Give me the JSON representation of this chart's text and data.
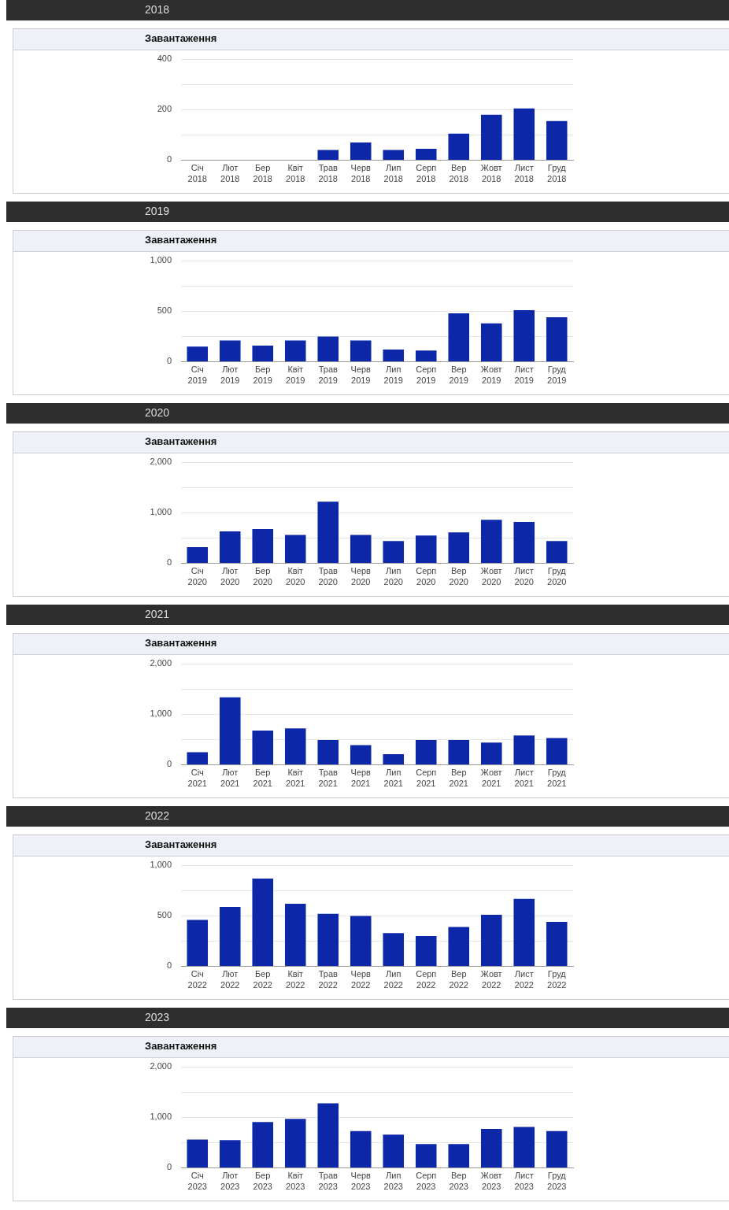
{
  "chart_data": [
    {
      "type": "bar",
      "title": "Завантаження",
      "subtitle": "2018",
      "categories": [
        "Січ 2018",
        "Лют 2018",
        "Бер 2018",
        "Квіт 2018",
        "Трав 2018",
        "Черв 2018",
        "Лип 2018",
        "Серп 2018",
        "Вер 2018",
        "Жовт 2018",
        "Лист 2018",
        "Груд 2018"
      ],
      "color": "#0c28a8",
      "values": [
        null,
        null,
        null,
        null,
        40,
        70,
        40,
        45,
        105,
        180,
        205,
        155
      ],
      "ylim": [
        0,
        400
      ],
      "yticks": [
        0,
        {
          "value": 100,
          "label": null
        },
        200,
        {
          "value": 300,
          "label": null
        },
        400
      ],
      "grid": "y",
      "legend": false
    },
    {
      "type": "bar",
      "title": "Завантаження",
      "subtitle": "2019",
      "categories": [
        "Січ 2019",
        "Лют 2019",
        "Бер 2019",
        "Квіт 2019",
        "Трав 2019",
        "Черв 2019",
        "Лип 2019",
        "Серп 2019",
        "Вер 2019",
        "Жовт 2019",
        "Лист 2019",
        "Груд 2019"
      ],
      "color": "#0c28a8",
      "values": [
        150,
        210,
        160,
        210,
        250,
        210,
        120,
        110,
        480,
        380,
        510,
        440
      ],
      "ylim": [
        0,
        1000
      ],
      "yticks": [
        0,
        {
          "value": 250,
          "label": null
        },
        500,
        {
          "value": 750,
          "label": null
        },
        {
          "value": 1000,
          "label": "1,000"
        }
      ],
      "grid": "y",
      "legend": false
    },
    {
      "type": "bar",
      "title": "Завантаження",
      "subtitle": "2020",
      "categories": [
        "Січ 2020",
        "Лют 2020",
        "Бер 2020",
        "Квіт 2020",
        "Трав 2020",
        "Черв 2020",
        "Лип 2020",
        "Серп 2020",
        "Вер 2020",
        "Жовт 2020",
        "Лист 2020",
        "Груд 2020"
      ],
      "color": "#0c28a8",
      "values": [
        320,
        630,
        680,
        560,
        1220,
        560,
        440,
        550,
        610,
        860,
        820,
        440
      ],
      "ylim": [
        0,
        2000
      ],
      "yticks": [
        0,
        {
          "value": 500,
          "label": null
        },
        {
          "value": 1000,
          "label": "1,000"
        },
        {
          "value": 1500,
          "label": null
        },
        {
          "value": 2000,
          "label": "2,000"
        }
      ],
      "grid": "y",
      "legend": false
    },
    {
      "type": "bar",
      "title": "Завантаження",
      "subtitle": "2021",
      "categories": [
        "Січ 2021",
        "Лют 2021",
        "Бер 2021",
        "Квіт 2021",
        "Трав 2021",
        "Черв 2021",
        "Лип 2021",
        "Серп 2021",
        "Вер 2021",
        "Жовт 2021",
        "Лист 2021",
        "Груд 2021"
      ],
      "color": "#0c28a8",
      "values": [
        250,
        1340,
        680,
        720,
        490,
        390,
        210,
        490,
        490,
        440,
        580,
        530
      ],
      "ylim": [
        0,
        2000
      ],
      "yticks": [
        0,
        {
          "value": 500,
          "label": null
        },
        {
          "value": 1000,
          "label": "1,000"
        },
        {
          "value": 1500,
          "label": null
        },
        {
          "value": 2000,
          "label": "2,000"
        }
      ],
      "grid": "y",
      "legend": false
    },
    {
      "type": "bar",
      "title": "Завантаження",
      "subtitle": "2022",
      "categories": [
        "Січ 2022",
        "Лют 2022",
        "Бер 2022",
        "Квіт 2022",
        "Трав 2022",
        "Черв 2022",
        "Лип 2022",
        "Серп 2022",
        "Вер 2022",
        "Жовт 2022",
        "Лист 2022",
        "Груд 2022"
      ],
      "color": "#0c28a8",
      "values": [
        460,
        590,
        870,
        620,
        520,
        500,
        330,
        300,
        390,
        510,
        670,
        440
      ],
      "ylim": [
        0,
        1000
      ],
      "yticks": [
        0,
        {
          "value": 250,
          "label": null
        },
        500,
        {
          "value": 750,
          "label": null
        },
        {
          "value": 1000,
          "label": "1,000"
        }
      ],
      "grid": "y",
      "legend": false
    },
    {
      "type": "bar",
      "title": "Завантаження",
      "subtitle": "2023",
      "categories": [
        "Січ 2023",
        "Лют 2023",
        "Бер 2023",
        "Квіт 2023",
        "Трав 2023",
        "Черв 2023",
        "Лип 2023",
        "Серп 2023",
        "Вер 2023",
        "Жовт 2023",
        "Лист 2023",
        "Груд 2023"
      ],
      "color": "#0c28a8",
      "values": [
        560,
        550,
        910,
        970,
        1280,
        730,
        660,
        470,
        470,
        770,
        810,
        730
      ],
      "ylim": [
        0,
        2000
      ],
      "yticks": [
        0,
        {
          "value": 500,
          "label": null
        },
        {
          "value": 1000,
          "label": "1,000"
        },
        {
          "value": 1500,
          "label": null
        },
        {
          "value": 2000,
          "label": "2,000"
        }
      ],
      "grid": "y",
      "legend": false
    }
  ]
}
